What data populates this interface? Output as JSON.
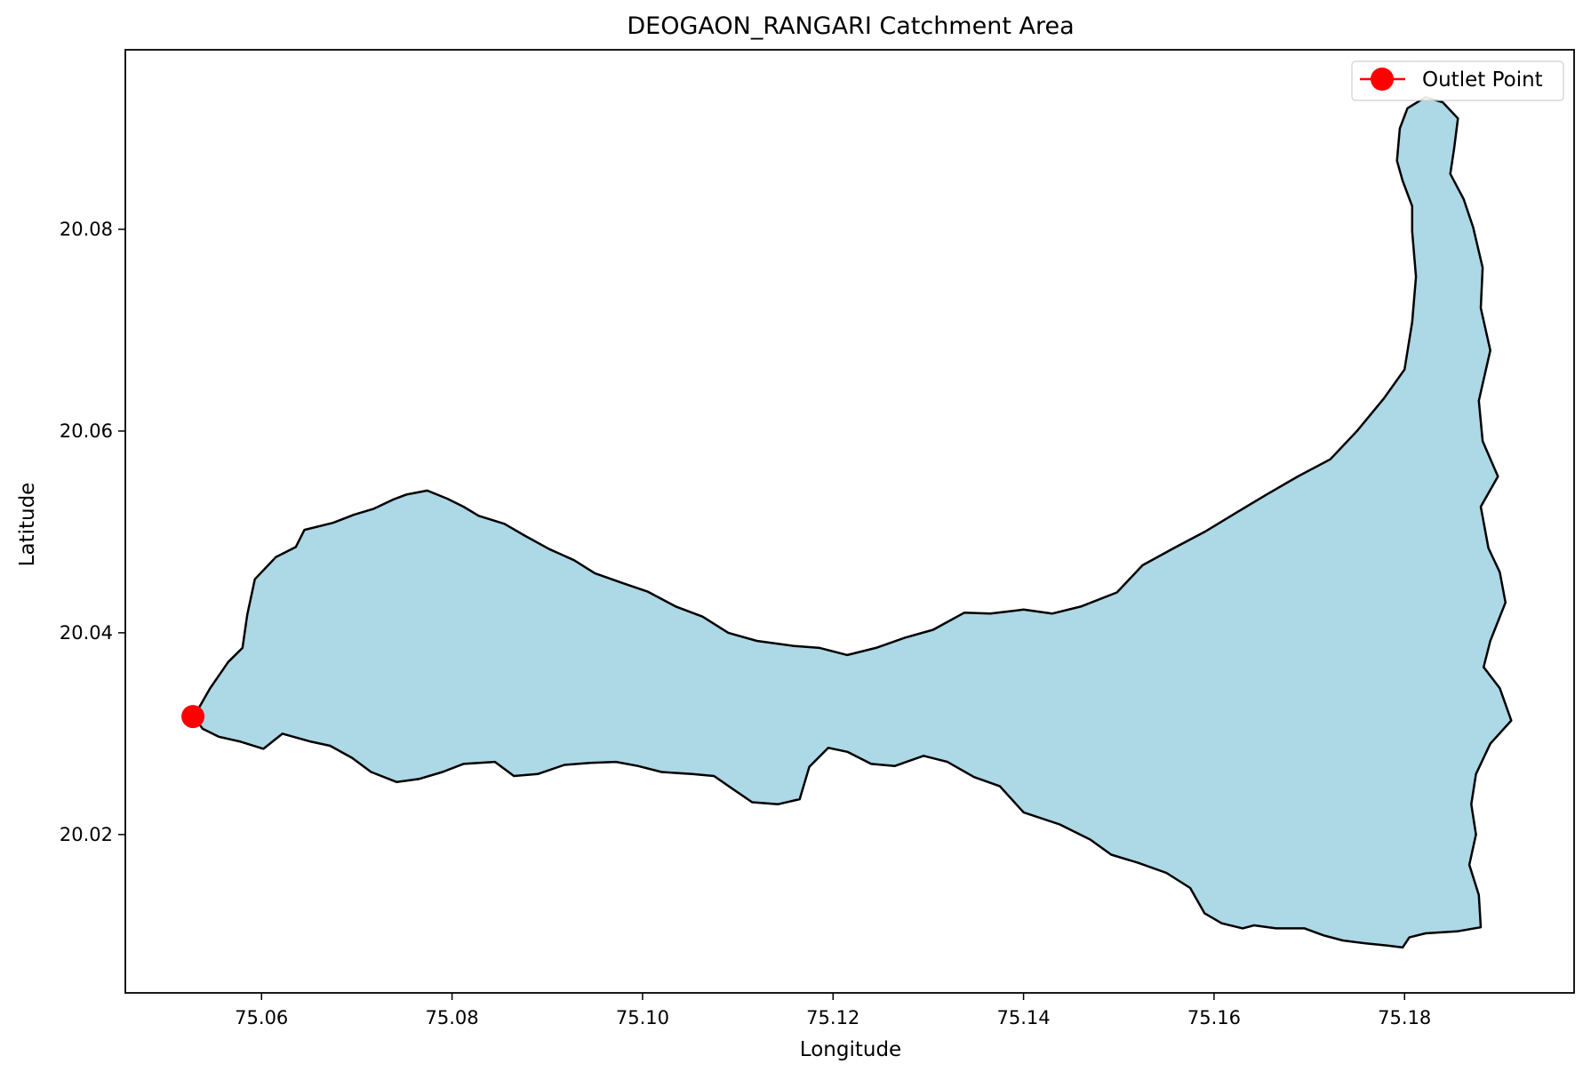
{
  "chart_data": {
    "type": "map",
    "title": "DEOGAON_RANGARI Catchment Area",
    "xlabel": "Longitude",
    "ylabel": "Latitude",
    "xlim": [
      75.0457,
      75.1978
    ],
    "ylim": [
      20.0043,
      20.0978
    ],
    "x_ticks": [
      "75.06",
      "75.08",
      "75.10",
      "75.12",
      "75.14",
      "75.16",
      "75.18"
    ],
    "y_ticks": [
      "20.02",
      "20.04",
      "20.06",
      "20.08"
    ],
    "x_tick_values": [
      75.06,
      75.08,
      75.1,
      75.12,
      75.14,
      75.16,
      75.18
    ],
    "y_tick_values": [
      20.02,
      20.04,
      20.06,
      20.08
    ],
    "grid": false,
    "legend": {
      "position": "top-right",
      "entries": [
        "Outlet Point"
      ]
    },
    "catchment": {
      "fill": "#add8e6",
      "edge": "#000000",
      "boundary": [
        [
          75.0529,
          20.0317
        ],
        [
          75.0546,
          20.0345
        ],
        [
          75.0565,
          20.0371
        ],
        [
          75.058,
          20.0385
        ],
        [
          75.0585,
          20.0418
        ],
        [
          75.0593,
          20.0453
        ],
        [
          75.0615,
          20.0475
        ],
        [
          75.0636,
          20.0485
        ],
        [
          75.0645,
          20.0502
        ],
        [
          75.0675,
          20.0509
        ],
        [
          75.0697,
          20.0517
        ],
        [
          75.0718,
          20.0523
        ],
        [
          75.0738,
          20.0532
        ],
        [
          75.0752,
          20.0537
        ],
        [
          75.0774,
          20.0541
        ],
        [
          75.0795,
          20.0533
        ],
        [
          75.0812,
          20.0525
        ],
        [
          75.0828,
          20.0516
        ],
        [
          75.0855,
          20.0508
        ],
        [
          75.0877,
          20.0496
        ],
        [
          75.0902,
          20.0483
        ],
        [
          75.0928,
          20.0472
        ],
        [
          75.095,
          20.0459
        ],
        [
          75.098,
          20.0449
        ],
        [
          75.1005,
          20.0441
        ],
        [
          75.1035,
          20.0426
        ],
        [
          75.1063,
          20.0416
        ],
        [
          75.109,
          20.04
        ],
        [
          75.112,
          20.0392
        ],
        [
          75.1158,
          20.0387
        ],
        [
          75.1186,
          20.0385
        ],
        [
          75.1215,
          20.0378
        ],
        [
          75.1245,
          20.0385
        ],
        [
          75.1275,
          20.0395
        ],
        [
          75.1305,
          20.0403
        ],
        [
          75.1338,
          20.042
        ],
        [
          75.1365,
          20.0419
        ],
        [
          75.14,
          20.0423
        ],
        [
          75.143,
          20.0419
        ],
        [
          75.146,
          20.0426
        ],
        [
          75.1498,
          20.044
        ],
        [
          75.1525,
          20.0467
        ],
        [
          75.156,
          20.0485
        ],
        [
          75.159,
          20.05
        ],
        [
          75.1625,
          20.052
        ],
        [
          75.1655,
          20.0537
        ],
        [
          75.1688,
          20.0555
        ],
        [
          75.1722,
          20.0572
        ],
        [
          75.175,
          20.06
        ],
        [
          75.1778,
          20.0632
        ],
        [
          75.18,
          20.0661
        ],
        [
          75.1808,
          20.0708
        ],
        [
          75.1812,
          20.0753
        ],
        [
          75.1808,
          20.0798
        ],
        [
          75.1808,
          20.0823
        ],
        [
          75.1798,
          20.0848
        ],
        [
          75.1792,
          20.0868
        ],
        [
          75.1795,
          20.09
        ],
        [
          75.1803,
          20.092
        ],
        [
          75.1822,
          20.0931
        ],
        [
          75.184,
          20.0926
        ],
        [
          75.1856,
          20.091
        ],
        [
          75.1852,
          20.088
        ],
        [
          75.1848,
          20.0855
        ],
        [
          75.1862,
          20.083
        ],
        [
          75.1872,
          20.0802
        ],
        [
          75.1882,
          20.0762
        ],
        [
          75.188,
          20.0722
        ],
        [
          75.189,
          20.068
        ],
        [
          75.1878,
          20.063
        ],
        [
          75.1882,
          20.059
        ],
        [
          75.1898,
          20.0555
        ],
        [
          75.188,
          20.0525
        ],
        [
          75.1888,
          20.0484
        ],
        [
          75.19,
          20.046
        ],
        [
          75.1906,
          20.043
        ],
        [
          75.189,
          20.0392
        ],
        [
          75.1883,
          20.0366
        ],
        [
          75.19,
          20.0345
        ],
        [
          75.1912,
          20.0313
        ],
        [
          75.189,
          20.029
        ],
        [
          75.1875,
          20.026
        ],
        [
          75.187,
          20.023
        ],
        [
          75.1875,
          20.02
        ],
        [
          75.1868,
          20.017
        ],
        [
          75.1878,
          20.014
        ],
        [
          75.188,
          20.0108
        ],
        [
          75.1855,
          20.0104
        ],
        [
          75.1822,
          20.0102
        ],
        [
          75.1805,
          20.0098
        ],
        [
          75.1798,
          20.0088
        ],
        [
          75.1782,
          20.009
        ],
        [
          75.176,
          20.0092
        ],
        [
          75.1735,
          20.0095
        ],
        [
          75.1715,
          20.01
        ],
        [
          75.1695,
          20.0107
        ],
        [
          75.1665,
          20.0107
        ],
        [
          75.1642,
          20.011
        ],
        [
          75.163,
          20.0107
        ],
        [
          75.1608,
          20.0112
        ],
        [
          75.159,
          20.0122
        ],
        [
          75.1575,
          20.0147
        ],
        [
          75.155,
          20.0162
        ],
        [
          75.152,
          20.0172
        ],
        [
          75.1492,
          20.018
        ],
        [
          75.147,
          20.0195
        ],
        [
          75.1438,
          20.021
        ],
        [
          75.14,
          20.0222
        ],
        [
          75.1375,
          20.0248
        ],
        [
          75.1348,
          20.0257
        ],
        [
          75.132,
          20.0272
        ],
        [
          75.1295,
          20.0278
        ],
        [
          75.1265,
          20.0268
        ],
        [
          75.124,
          20.027
        ],
        [
          75.1215,
          20.0282
        ],
        [
          75.1195,
          20.0286
        ],
        [
          75.1175,
          20.0267
        ],
        [
          75.1165,
          20.0235
        ],
        [
          75.1142,
          20.023
        ],
        [
          75.1115,
          20.0232
        ],
        [
          75.1095,
          20.0245
        ],
        [
          75.1075,
          20.0258
        ],
        [
          75.1052,
          20.026
        ],
        [
          75.102,
          20.0262
        ],
        [
          75.0995,
          20.0268
        ],
        [
          75.0972,
          20.0272
        ],
        [
          75.0945,
          20.0271
        ],
        [
          75.0918,
          20.0269
        ],
        [
          75.089,
          20.026
        ],
        [
          75.0865,
          20.0258
        ],
        [
          75.0845,
          20.0272
        ],
        [
          75.0812,
          20.027
        ],
        [
          75.079,
          20.0262
        ],
        [
          75.0765,
          20.0255
        ],
        [
          75.0742,
          20.0252
        ],
        [
          75.0715,
          20.0262
        ],
        [
          75.0695,
          20.0276
        ],
        [
          75.0672,
          20.0288
        ],
        [
          75.0652,
          20.0292
        ],
        [
          75.0622,
          20.03
        ],
        [
          75.0602,
          20.0285
        ],
        [
          75.0578,
          20.0292
        ],
        [
          75.0555,
          20.0297
        ],
        [
          75.0538,
          20.0305
        ]
      ]
    },
    "outlet_point": {
      "name": "Outlet Point",
      "x": 75.0528,
      "y": 20.0317,
      "color": "#ff0000"
    }
  }
}
